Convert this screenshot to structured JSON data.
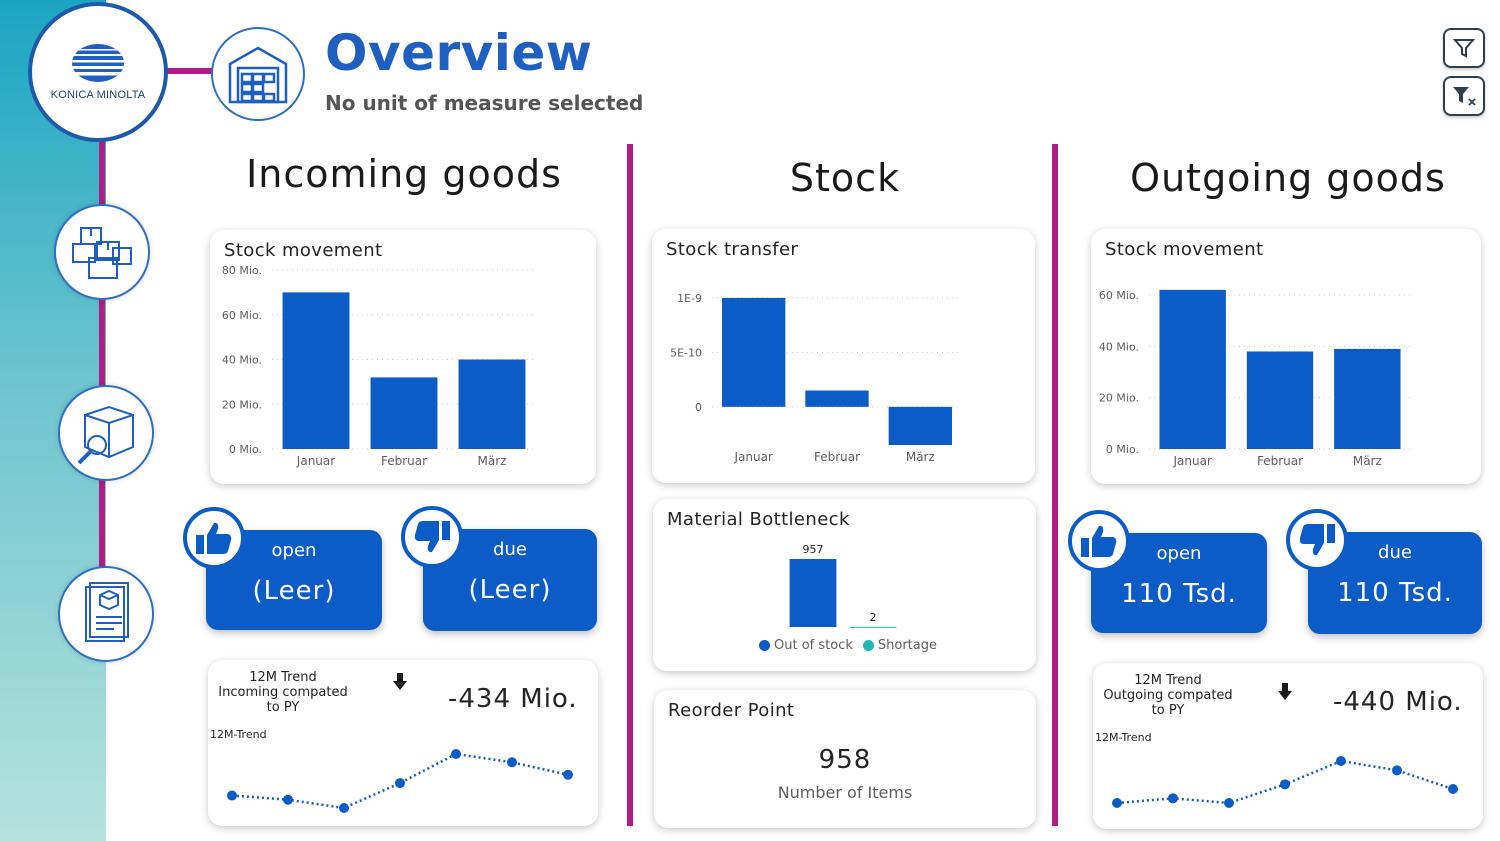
{
  "header": {
    "title": "Overview",
    "subtitle": "No unit of measure selected",
    "logo_text": "KONICA MINOLTA"
  },
  "nav": {
    "items": [
      {
        "icon": "warehouse-icon"
      },
      {
        "icon": "boxes-icon"
      },
      {
        "icon": "inspect-box-icon"
      },
      {
        "icon": "document-package-icon"
      }
    ]
  },
  "toolbar": {
    "filter_icon": "filter-icon",
    "clear_filter_icon": "clear-filter-icon"
  },
  "colors": {
    "accent": "#b31b85",
    "brand_blue": "#0b5cc6",
    "title_blue": "#1e5fbf",
    "teal": "#20b8b0"
  },
  "incoming": {
    "section_title": "Incoming goods",
    "chart_title": "Stock movement",
    "kpi_open": {
      "label": "open",
      "value": "(Leer)"
    },
    "kpi_due": {
      "label": "due",
      "value": "(Leer)"
    },
    "trend": {
      "title": "12M Trend Incoming compated to PY",
      "value": "-434 Mio.",
      "label": "12M-Trend"
    }
  },
  "stock": {
    "section_title": "Stock",
    "chart_title": "Stock transfer",
    "bottleneck_title": "Material Bottleneck",
    "reorder": {
      "title": "Reorder Point",
      "value": "958",
      "caption": "Number of Items"
    }
  },
  "outgoing": {
    "section_title": "Outgoing goods",
    "chart_title": "Stock movement",
    "kpi_open": {
      "label": "open",
      "value": "110 Tsd."
    },
    "kpi_due": {
      "label": "due",
      "value": "110 Tsd."
    },
    "trend": {
      "title": "12M Trend Outgoing compated to PY",
      "value": "-440 Mio.",
      "label": "12M-Trend"
    }
  },
  "chart_data": [
    {
      "id": "incoming",
      "type": "bar",
      "title": "Stock movement",
      "categories": [
        "Januar",
        "Februar",
        "März"
      ],
      "values": [
        70,
        32,
        40
      ],
      "ylim": [
        0,
        80
      ],
      "yticks": [
        0,
        20,
        40,
        60,
        80
      ],
      "ytick_labels": [
        "0 Mio.",
        "20 Mio.",
        "40 Mio.",
        "60 Mio.",
        "80 Mio."
      ],
      "grid": true
    },
    {
      "id": "transfer",
      "type": "bar",
      "title": "Stock transfer",
      "categories": [
        "Januar",
        "Februar",
        "März"
      ],
      "values": [
        1e-09,
        1.5e-10,
        -3.5e-10
      ],
      "ylim": [
        -3.5e-10,
        1.1e-09
      ],
      "yticks": [
        0,
        5e-10,
        1e-09
      ],
      "ytick_labels": [
        "0",
        "5E-10",
        "1E-9"
      ],
      "grid": true
    },
    {
      "id": "outgoing",
      "type": "bar",
      "title": "Stock movement",
      "categories": [
        "Januar",
        "Februar",
        "März"
      ],
      "values": [
        62,
        38,
        39
      ],
      "ylim": [
        0,
        60
      ],
      "yticks": [
        0,
        20,
        40,
        60
      ],
      "ytick_labels": [
        "0 Mio.",
        "20 Mio.",
        "40 Mio.",
        "60 Mio."
      ],
      "grid": true
    },
    {
      "id": "bottleneck",
      "type": "bar",
      "title": "Material Bottleneck",
      "categories": [
        "Out of stock",
        "Shortage"
      ],
      "values": [
        957,
        2
      ],
      "value_labels": [
        "957",
        "2"
      ],
      "colors": [
        "#0b5cc6",
        "#20b8b0"
      ],
      "legend": "bottom"
    },
    {
      "id": "trend_in",
      "type": "line",
      "title": "12M Trend Incoming compated to PY",
      "values": [
        -440,
        -441,
        -443,
        -437,
        -430,
        -432,
        -435
      ]
    },
    {
      "id": "trend_out",
      "type": "line",
      "title": "12M Trend Outgoing compated to PY",
      "values": [
        -447,
        -446,
        -447,
        -443,
        -438,
        -440,
        -444
      ]
    }
  ]
}
